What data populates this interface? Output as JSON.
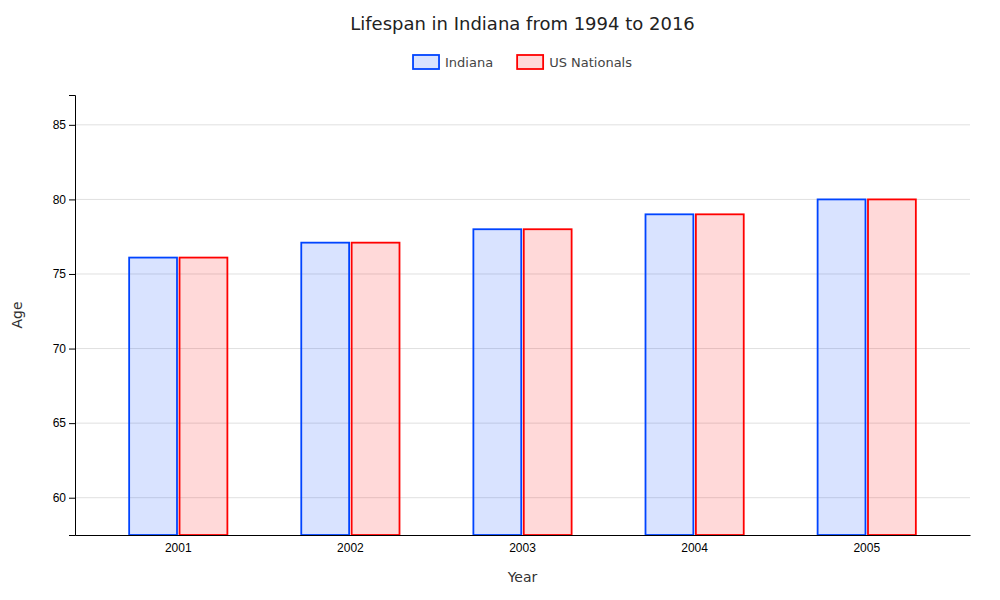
{
  "chart_data": {
    "type": "bar",
    "title": "Lifespan in Indiana from 1994 to 2016",
    "xlabel": "Year",
    "ylabel": "Age",
    "categories": [
      "2001",
      "2002",
      "2003",
      "2004",
      "2005"
    ],
    "series": [
      {
        "name": "Indiana",
        "color": "#0044ff",
        "values": [
          76.1,
          77.1,
          78.0,
          79.0,
          80.0
        ]
      },
      {
        "name": "US Nationals",
        "color": "#ff0000",
        "values": [
          76.1,
          77.1,
          78.0,
          79.0,
          80.0
        ]
      }
    ],
    "ylim": [
      57.5,
      87
    ],
    "yticks": [
      60,
      65,
      70,
      75,
      80,
      85
    ],
    "grid": true,
    "legend": "top"
  }
}
